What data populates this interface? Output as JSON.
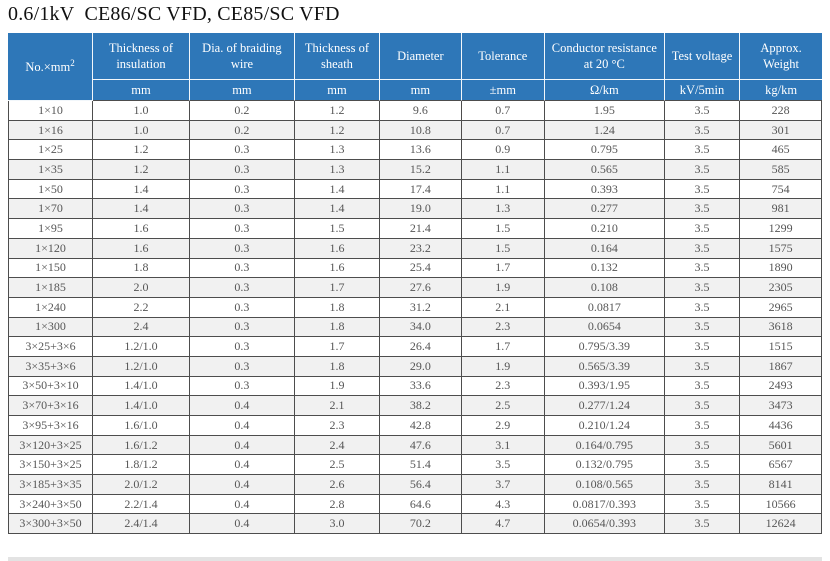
{
  "page": {
    "title": "0.6/1kV  CE86/SC VFD, CE85/SC VFD"
  },
  "colors": {
    "header_bg": "#2e77b8",
    "header_text": "#ffffff",
    "row_alt_bg": "#f1f1f1",
    "grid_border": "#4d4d4d",
    "body_text": "#565656"
  },
  "table": {
    "header": {
      "col1": {
        "label": "No.×mm",
        "sup": "2"
      },
      "columns": [
        {
          "label": "Thickness of insulation",
          "unit": "mm"
        },
        {
          "label": "Dia. of braiding wire",
          "unit": "mm"
        },
        {
          "label": "Thickness of sheath",
          "unit": "mm"
        },
        {
          "label": "Diameter",
          "unit": "mm"
        },
        {
          "label": "Tolerance",
          "unit": "±mm"
        },
        {
          "label": "Conductor resistance at 20 °C",
          "unit": "Ω/km"
        },
        {
          "label": "Test voltage",
          "unit": "kV/5min"
        },
        {
          "label": "Approx. Weight",
          "unit": "kg/km"
        }
      ]
    },
    "rows": [
      [
        "1×10",
        "1.0",
        "0.2",
        "1.2",
        "9.6",
        "0.7",
        "1.95",
        "3.5",
        "228"
      ],
      [
        "1×16",
        "1.0",
        "0.2",
        "1.2",
        "10.8",
        "0.7",
        "1.24",
        "3.5",
        "301"
      ],
      [
        "1×25",
        "1.2",
        "0.3",
        "1.3",
        "13.6",
        "0.9",
        "0.795",
        "3.5",
        "465"
      ],
      [
        "1×35",
        "1.2",
        "0.3",
        "1.3",
        "15.2",
        "1.1",
        "0.565",
        "3.5",
        "585"
      ],
      [
        "1×50",
        "1.4",
        "0.3",
        "1.4",
        "17.4",
        "1.1",
        "0.393",
        "3.5",
        "754"
      ],
      [
        "1×70",
        "1.4",
        "0.3",
        "1.4",
        "19.0",
        "1.3",
        "0.277",
        "3.5",
        "981"
      ],
      [
        "1×95",
        "1.6",
        "0.3",
        "1.5",
        "21.4",
        "1.5",
        "0.210",
        "3.5",
        "1299"
      ],
      [
        "1×120",
        "1.6",
        "0.3",
        "1.6",
        "23.2",
        "1.5",
        "0.164",
        "3.5",
        "1575"
      ],
      [
        "1×150",
        "1.8",
        "0.3",
        "1.6",
        "25.4",
        "1.7",
        "0.132",
        "3.5",
        "1890"
      ],
      [
        "1×185",
        "2.0",
        "0.3",
        "1.7",
        "27.6",
        "1.9",
        "0.108",
        "3.5",
        "2305"
      ],
      [
        "1×240",
        "2.2",
        "0.3",
        "1.8",
        "31.2",
        "2.1",
        "0.0817",
        "3.5",
        "2965"
      ],
      [
        "1×300",
        "2.4",
        "0.3",
        "1.8",
        "34.0",
        "2.3",
        "0.0654",
        "3.5",
        "3618"
      ],
      [
        "3×25+3×6",
        "1.2/1.0",
        "0.3",
        "1.7",
        "26.4",
        "1.7",
        "0.795/3.39",
        "3.5",
        "1515"
      ],
      [
        "3×35+3×6",
        "1.2/1.0",
        "0.3",
        "1.8",
        "29.0",
        "1.9",
        "0.565/3.39",
        "3.5",
        "1867"
      ],
      [
        "3×50+3×10",
        "1.4/1.0",
        "0.3",
        "1.9",
        "33.6",
        "2.3",
        "0.393/1.95",
        "3.5",
        "2493"
      ],
      [
        "3×70+3×16",
        "1.4/1.0",
        "0.4",
        "2.1",
        "38.2",
        "2.5",
        "0.277/1.24",
        "3.5",
        "3473"
      ],
      [
        "3×95+3×16",
        "1.6/1.0",
        "0.4",
        "2.3",
        "42.8",
        "2.9",
        "0.210/1.24",
        "3.5",
        "4436"
      ],
      [
        "3×120+3×25",
        "1.6/1.2",
        "0.4",
        "2.4",
        "47.6",
        "3.1",
        "0.164/0.795",
        "3.5",
        "5601"
      ],
      [
        "3×150+3×25",
        "1.8/1.2",
        "0.4",
        "2.5",
        "51.4",
        "3.5",
        "0.132/0.795",
        "3.5",
        "6567"
      ],
      [
        "3×185+3×35",
        "2.0/1.2",
        "0.4",
        "2.6",
        "56.4",
        "3.7",
        "0.108/0.565",
        "3.5",
        "8141"
      ],
      [
        "3×240+3×50",
        "2.2/1.4",
        "0.4",
        "2.8",
        "64.6",
        "4.3",
        "0.0817/0.393",
        "3.5",
        "10566"
      ],
      [
        "3×300+3×50",
        "2.4/1.4",
        "0.4",
        "3.0",
        "70.2",
        "4.7",
        "0.0654/0.393",
        "3.5",
        "12624"
      ]
    ]
  }
}
